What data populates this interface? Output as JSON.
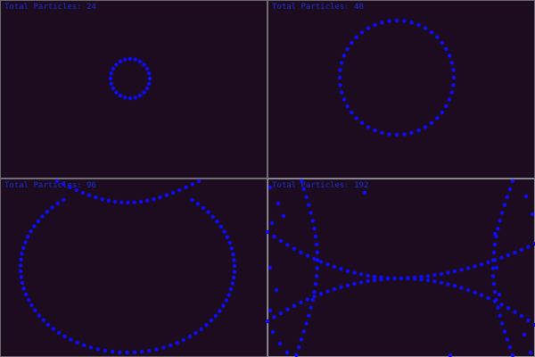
{
  "panels": [
    {
      "label": "Total Particles: 24",
      "dot_color": "#0d0df8"
    },
    {
      "label": "Total Particles: 48",
      "dot_color": "#0d0df8"
    },
    {
      "label": "Total Particles: 96",
      "dot_color": "#0d0df8"
    },
    {
      "label": "Total Particles: 192",
      "dot_color": "#0d0df8"
    }
  ],
  "colors": {
    "background": "#1b0b1e",
    "frame": "#6e6e72",
    "label": "#1c2fd6"
  }
}
